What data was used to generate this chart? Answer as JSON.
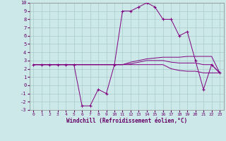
{
  "xlabel": "Windchill (Refroidissement éolien,°C)",
  "background_color": "#cce8e8",
  "grid_color": "#aacccc",
  "line_color": "#800080",
  "x_hours": [
    0,
    1,
    2,
    3,
    4,
    5,
    6,
    7,
    8,
    9,
    10,
    11,
    12,
    13,
    14,
    15,
    16,
    17,
    18,
    19,
    20,
    21,
    22,
    23
  ],
  "windchill": [
    2.5,
    2.5,
    2.5,
    2.5,
    2.5,
    2.5,
    -2.5,
    -2.5,
    -0.5,
    -1.0,
    2.5,
    9.0,
    9.0,
    9.5,
    10.0,
    9.5,
    8.0,
    8.0,
    6.0,
    6.5,
    3.0,
    -0.5,
    2.5,
    1.5
  ],
  "temp_line1": [
    2.5,
    2.5,
    2.5,
    2.5,
    2.5,
    2.5,
    2.5,
    2.5,
    2.5,
    2.5,
    2.5,
    2.5,
    2.8,
    3.0,
    3.2,
    3.3,
    3.4,
    3.4,
    3.4,
    3.5,
    3.5,
    3.5,
    3.5,
    1.5
  ],
  "temp_line2": [
    2.5,
    2.5,
    2.5,
    2.5,
    2.5,
    2.5,
    2.5,
    2.5,
    2.5,
    2.5,
    2.5,
    2.5,
    2.5,
    2.5,
    2.5,
    2.5,
    2.5,
    2.0,
    1.8,
    1.7,
    1.7,
    1.5,
    1.5,
    1.5
  ],
  "temp_line3": [
    2.5,
    2.5,
    2.5,
    2.5,
    2.5,
    2.5,
    2.5,
    2.5,
    2.5,
    2.5,
    2.5,
    2.5,
    2.6,
    2.8,
    3.0,
    3.0,
    3.0,
    2.8,
    2.7,
    2.7,
    2.7,
    2.5,
    2.5,
    1.5
  ],
  "ylim": [
    -3,
    10
  ],
  "yticks": [
    -3,
    -2,
    -1,
    0,
    1,
    2,
    3,
    4,
    5,
    6,
    7,
    8,
    9,
    10
  ],
  "xticks": [
    0,
    1,
    2,
    3,
    4,
    5,
    6,
    7,
    8,
    9,
    10,
    11,
    12,
    13,
    14,
    15,
    16,
    17,
    18,
    19,
    20,
    21,
    22,
    23
  ],
  "label_color": "#660066",
  "tick_color": "#660066"
}
